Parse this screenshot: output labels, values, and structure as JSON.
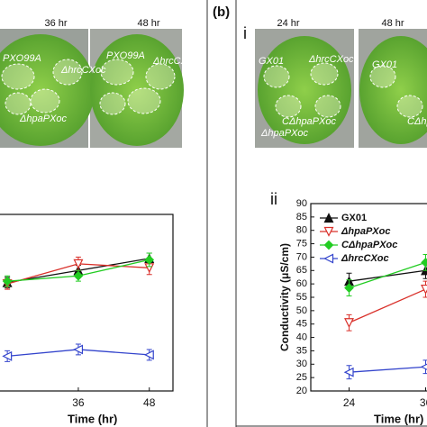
{
  "panel_label": "(b)",
  "photo_label": "i",
  "photos": [
    {
      "time": "36 hr",
      "labels": [
        "PXO99A",
        "ΔhrcCXoc",
        "ΔhpaPXoc"
      ]
    },
    {
      "time": "48 hr",
      "labels": [
        "PXO99A",
        "ΔhrcCXoc"
      ]
    },
    {
      "time": "24 hr",
      "labels": [
        "GX01",
        "ΔhrcCXoc",
        "CΔhpaPXoc",
        "ΔhpaPXoc"
      ]
    },
    {
      "time": "48 hr",
      "labels": [
        "GX01",
        "CΔhpaPXoc"
      ]
    }
  ],
  "chart_data": [
    {
      "type": "line",
      "x_label": "Time (hr)",
      "x": [
        24,
        36,
        48
      ],
      "xlim": [
        22,
        52
      ],
      "xticks": [
        36,
        48
      ],
      "ylim": [
        20,
        90
      ],
      "series": [
        {
          "name": "PXO99A",
          "color": "#111111",
          "marker": "triangle",
          "values": [
            60.5,
            65,
            69.5
          ],
          "errors": [
            2,
            2,
            2
          ]
        },
        {
          "name": "ΔhpaPXoc",
          "color": "#d9302a",
          "marker": "open-triangle-down",
          "values": [
            60,
            67.5,
            66
          ],
          "errors": [
            2,
            2.5,
            2.5
          ]
        },
        {
          "name": "CΔhpaPXoc",
          "color": "#22cc22",
          "marker": "diamond",
          "values": [
            61,
            63,
            69
          ],
          "errors": [
            2,
            2,
            2.5
          ]
        },
        {
          "name": "ΔhrcCXoc",
          "color": "#3344cc",
          "marker": "open-triangle-left",
          "values": [
            33,
            35.5,
            33.5
          ],
          "errors": [
            2,
            2,
            2
          ]
        }
      ]
    },
    {
      "type": "line",
      "label": "ii",
      "y_label": "Conductivity (μS/cm)",
      "x_label": "Time (hr)",
      "x": [
        24,
        36
      ],
      "xlim": [
        18,
        54
      ],
      "xticks": [
        24,
        36
      ],
      "ylim": [
        20,
        90
      ],
      "yticks": [
        20,
        25,
        30,
        35,
        40,
        45,
        50,
        55,
        60,
        65,
        70,
        75,
        80,
        85,
        90
      ],
      "series": [
        {
          "name": "GX01",
          "color": "#111111",
          "marker": "triangle",
          "values": [
            61,
            65
          ],
          "errors": [
            3,
            3
          ]
        },
        {
          "name": "ΔhpaPXoc",
          "color": "#d9302a",
          "marker": "open-triangle-down",
          "values": [
            45.5,
            58
          ],
          "errors": [
            3,
            3
          ]
        },
        {
          "name": "CΔhpaPXoc",
          "color": "#22cc22",
          "marker": "diamond",
          "values": [
            58.5,
            68
          ],
          "errors": [
            3,
            3
          ]
        },
        {
          "name": "ΔhrcCXoc",
          "color": "#3344cc",
          "marker": "open-triangle-left",
          "values": [
            27,
            29
          ],
          "errors": [
            2.5,
            2.5
          ]
        }
      ]
    }
  ]
}
